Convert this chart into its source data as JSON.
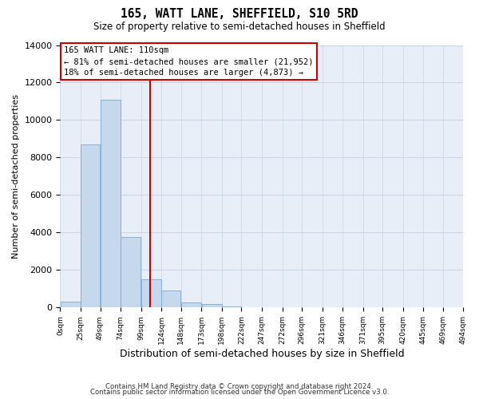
{
  "title": "165, WATT LANE, SHEFFIELD, S10 5RD",
  "subtitle": "Size of property relative to semi-detached houses in Sheffield",
  "xlabel": "Distribution of semi-detached houses by size in Sheffield",
  "ylabel": "Number of semi-detached properties",
  "property_size": 110,
  "bar_color": "#c5d8ee",
  "bar_edge_color": "#7aaad0",
  "vline_color": "#cc0000",
  "grid_color": "#c8d4e4",
  "background_color": "#e8eef8",
  "bin_edges": [
    0,
    25,
    49,
    74,
    99,
    124,
    148,
    173,
    198,
    222,
    247,
    272,
    296,
    321,
    346,
    371,
    395,
    420,
    445,
    469,
    494
  ],
  "bin_labels": [
    "0sqm",
    "25sqm",
    "49sqm",
    "74sqm",
    "99sqm",
    "124sqm",
    "148sqm",
    "173sqm",
    "198sqm",
    "222sqm",
    "247sqm",
    "272sqm",
    "296sqm",
    "321sqm",
    "346sqm",
    "371sqm",
    "395sqm",
    "420sqm",
    "445sqm",
    "469sqm",
    "494sqm"
  ],
  "bar_heights": [
    300,
    8700,
    11100,
    3750,
    1500,
    900,
    280,
    170,
    75,
    30,
    10,
    5,
    2,
    1,
    0,
    0,
    0,
    0,
    0,
    0
  ],
  "ylim": [
    0,
    14000
  ],
  "yticks": [
    0,
    2000,
    4000,
    6000,
    8000,
    10000,
    12000,
    14000
  ],
  "footer_line1": "Contains HM Land Registry data © Crown copyright and database right 2024.",
  "footer_line2": "Contains public sector information licensed under the Open Government Licence v3.0."
}
